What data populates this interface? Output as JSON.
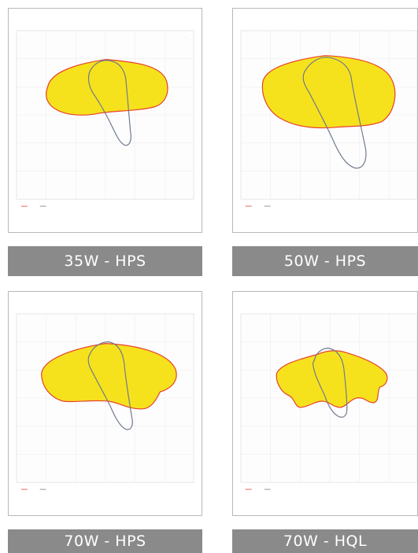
{
  "colors": {
    "fill": "#f6e21c",
    "c0": "#e8412c",
    "c90": "#6f7a8c",
    "label_bg": "#8a8a8a",
    "label_text": "#ffffff",
    "grid": "#e4e4e4"
  },
  "panels": [
    {
      "label": "35W - HPS"
    },
    {
      "label": "50W - HPS"
    },
    {
      "label": "70W - HPS"
    },
    {
      "label": "70W - HQL"
    }
  ]
}
